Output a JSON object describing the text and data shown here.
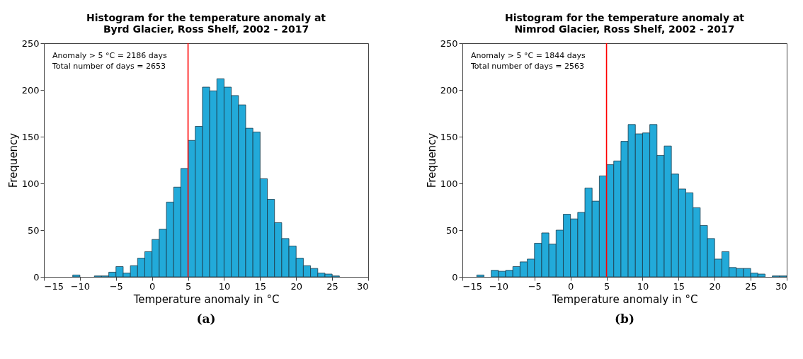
{
  "chart_data": [
    {
      "type": "histogram",
      "title": "Histogram for the temperature anomaly at\nByrd Glacier, Ross Shelf, 2002 - 2017",
      "xlabel": "Temperature anomaly in °C",
      "ylabel": "Frequency",
      "color": "#22aad9",
      "bins": [
        -11,
        -10,
        -9,
        -8,
        -7,
        -6,
        -5,
        -4,
        -3,
        -2,
        -1,
        0,
        1,
        2,
        3,
        4,
        5,
        6,
        7,
        8,
        9,
        10,
        11,
        12,
        13,
        14,
        15,
        16,
        17,
        18,
        19,
        20,
        21,
        22,
        23,
        24,
        25,
        26
      ],
      "values": [
        2,
        0,
        0,
        1,
        1,
        5,
        11,
        4,
        12,
        20,
        27,
        40,
        51,
        80,
        96,
        116,
        146,
        161,
        203,
        199,
        212,
        203,
        194,
        184,
        159,
        155,
        105,
        83,
        58,
        41,
        33,
        20,
        12,
        9,
        4,
        3,
        1
      ],
      "xlim": [
        -15,
        30
      ],
      "xticks": [
        -15,
        -10,
        -5,
        0,
        5,
        10,
        15,
        20,
        25,
        30
      ],
      "ylim": [
        0,
        250
      ],
      "yticks": [
        0,
        50,
        100,
        150,
        200,
        250
      ],
      "ref_lines": [
        {
          "axis": "x",
          "value": 5,
          "color": "#ff0000"
        }
      ],
      "annotations": [
        "Anomaly > 5 °C = 2186 days",
        "Total number of days = 2653",
        "(a)"
      ]
    },
    {
      "type": "histogram",
      "title": "Histogram for the temperature anomaly at\nNimrod Glacier, Ross Shelf, 2002 - 2017",
      "xlabel": "Temperature anomaly in °C",
      "ylabel": "Frequency",
      "color": "#22aad9",
      "bins": [
        -13,
        -12,
        -11,
        -10,
        -9,
        -8,
        -7,
        -6,
        -5,
        -4,
        -3,
        -2,
        -1,
        0,
        1,
        2,
        3,
        4,
        5,
        6,
        7,
        8,
        9,
        10,
        11,
        12,
        13,
        14,
        15,
        16,
        17,
        18,
        19,
        20,
        21,
        22,
        23,
        24,
        25,
        26,
        27,
        28,
        29,
        30
      ],
      "values": [
        2,
        0,
        7,
        6,
        7,
        11,
        16,
        19,
        36,
        47,
        35,
        50,
        67,
        62,
        69,
        95,
        81,
        108,
        120,
        124,
        145,
        163,
        153,
        154,
        163,
        130,
        140,
        110,
        94,
        90,
        74,
        55,
        41,
        19,
        27,
        10,
        9,
        9,
        4,
        3,
        0,
        1,
        1
      ],
      "xlim": [
        -15,
        30
      ],
      "xticks": [
        -15,
        -10,
        -5,
        0,
        5,
        10,
        15,
        20,
        25,
        30
      ],
      "ylim": [
        0,
        250
      ],
      "yticks": [
        0,
        50,
        100,
        150,
        200,
        250
      ],
      "ref_lines": [
        {
          "axis": "x",
          "value": 5,
          "color": "#ff0000"
        }
      ],
      "annotations": [
        "Anomaly > 5 °C = 1844 days",
        "Total number of days = 2563",
        "(b)"
      ]
    }
  ]
}
